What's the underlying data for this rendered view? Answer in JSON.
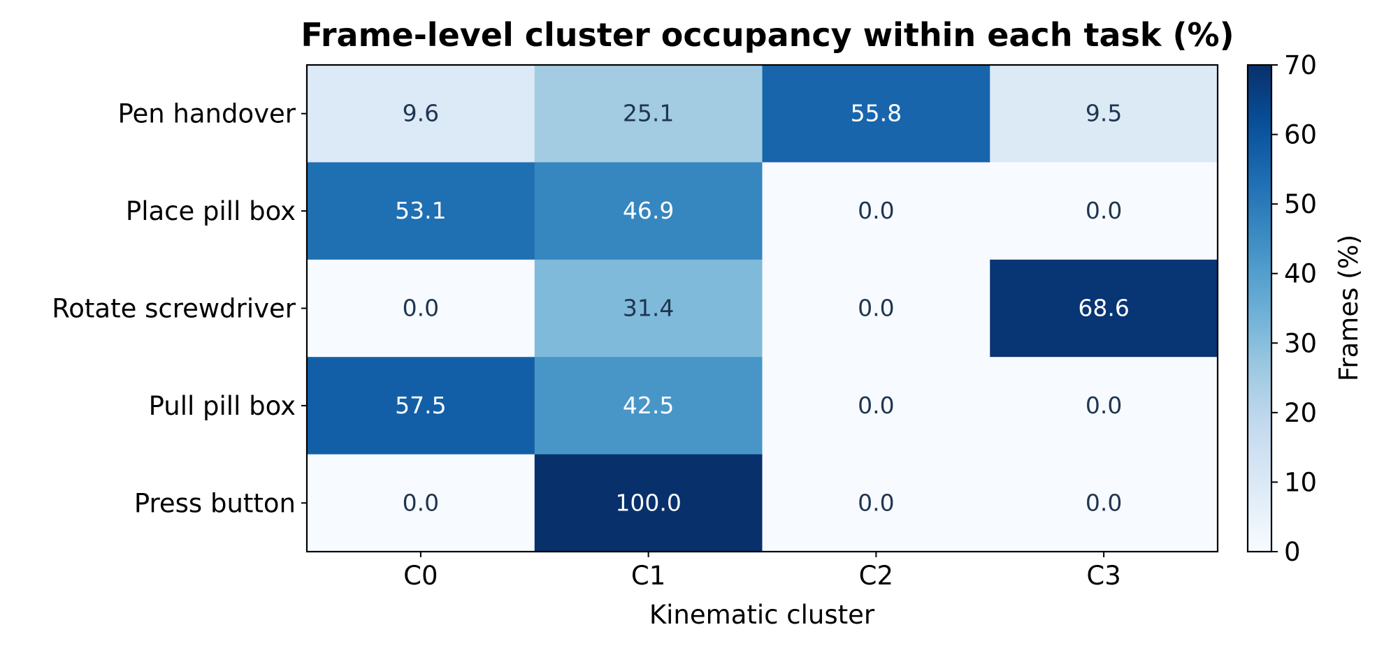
{
  "chart_data": {
    "type": "heatmap",
    "title": "Frame-level cluster occupancy within each task (%)",
    "xlabel": "Kinematic cluster",
    "ylabel": "",
    "x_categories": [
      "C0",
      "C1",
      "C2",
      "C3"
    ],
    "y_categories": [
      "Pen handover",
      "Place pill box",
      "Rotate screwdriver",
      "Pull pill box",
      "Press button"
    ],
    "values": [
      [
        9.6,
        25.1,
        55.8,
        9.5
      ],
      [
        53.1,
        46.9,
        0.0,
        0.0
      ],
      [
        0.0,
        31.4,
        0.0,
        68.6
      ],
      [
        57.5,
        42.5,
        0.0,
        0.0
      ],
      [
        0.0,
        100.0,
        0.0,
        0.0
      ]
    ],
    "value_format": "0.0",
    "colormap": "Blues",
    "color_range": [
      0,
      70
    ],
    "colorbar": {
      "label": "Frames (%)",
      "ticks": [
        0,
        10,
        20,
        30,
        40,
        50,
        60,
        70
      ]
    },
    "grid": false,
    "annotation_colors": {
      "dark_text": "#1f3550",
      "light_text": "#ffffff"
    }
  }
}
